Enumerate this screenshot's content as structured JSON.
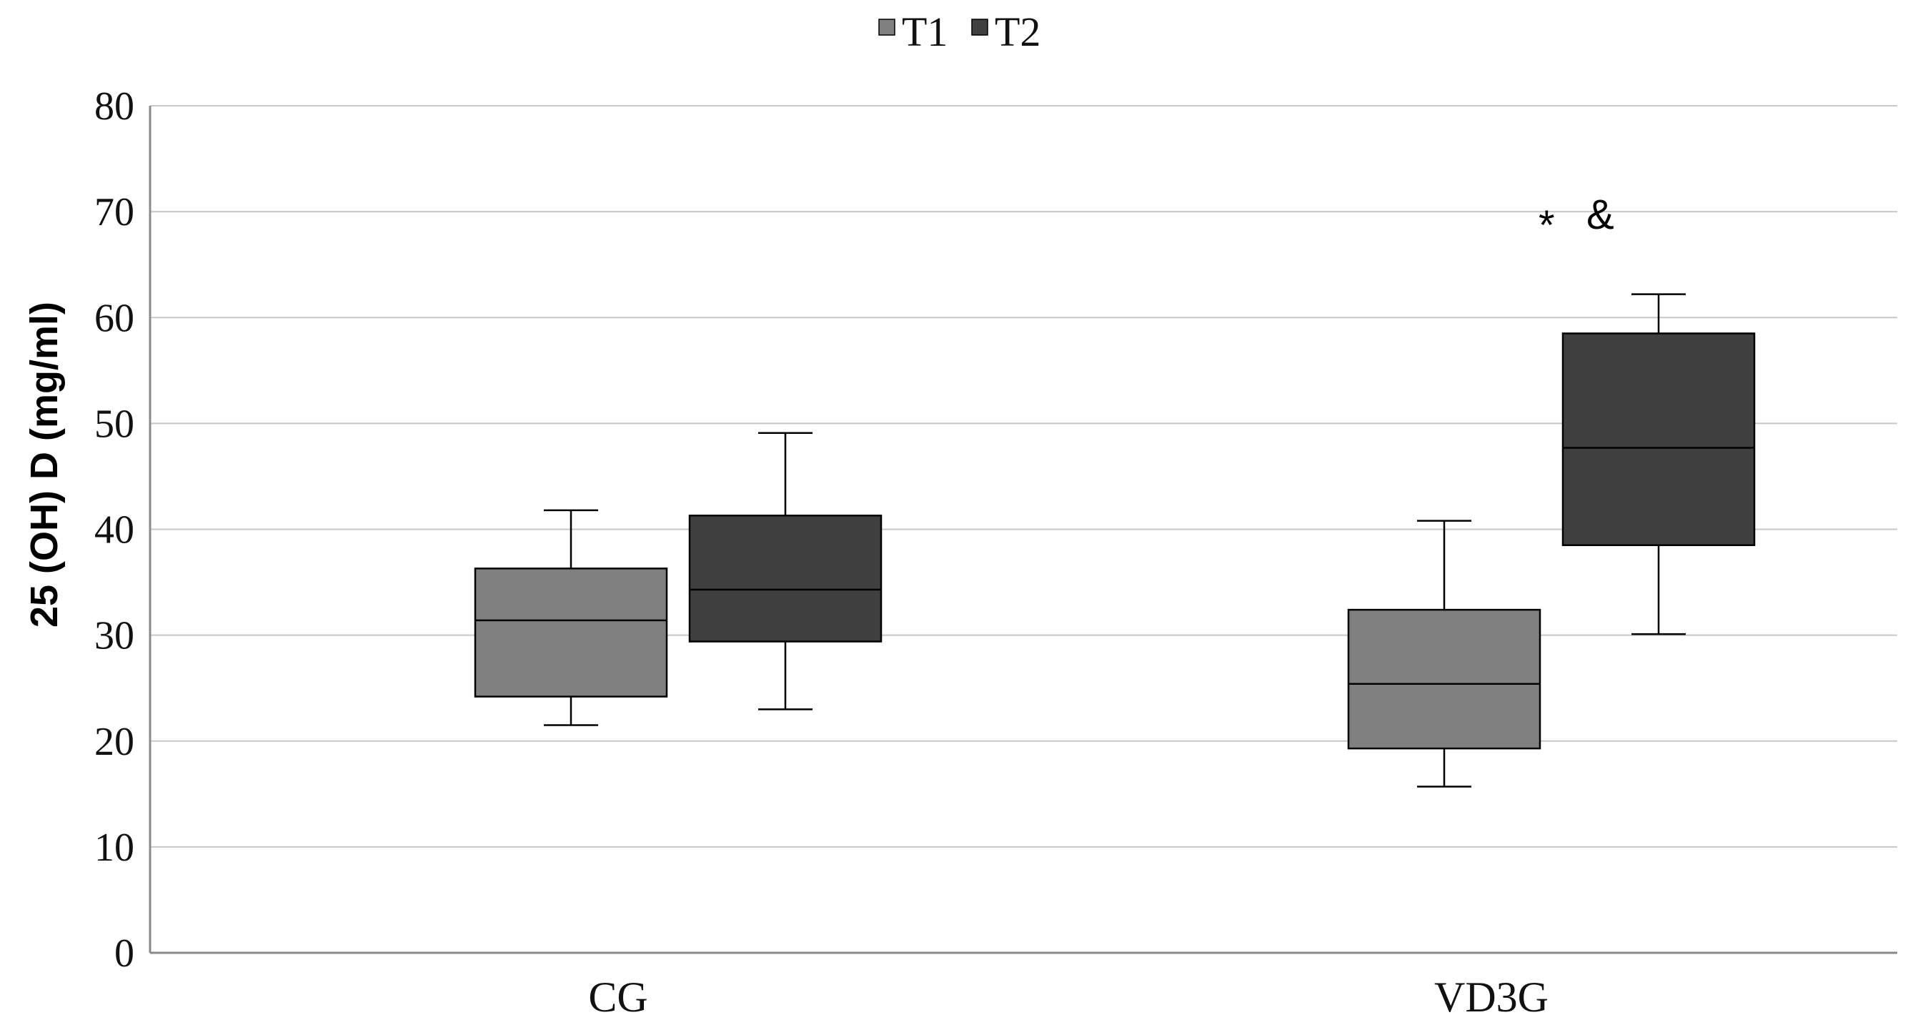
{
  "chart_data": {
    "type": "boxplot",
    "ylabel": "25 (OH) D (mg/ml)",
    "xlabel": "",
    "ylim": [
      0,
      80
    ],
    "yticks": [
      0,
      10,
      20,
      30,
      40,
      50,
      60,
      70,
      80
    ],
    "grid": true,
    "legend_position": "top-center",
    "categories": [
      "CG",
      "VD3G"
    ],
    "series": [
      {
        "name": "T1",
        "color": "#808080",
        "boxes": [
          {
            "category": "CG",
            "min": 21.5,
            "q1": 24.2,
            "median": 31.4,
            "q3": 36.3,
            "max": 41.8
          },
          {
            "category": "VD3G",
            "min": 15.7,
            "q1": 19.3,
            "median": 25.4,
            "q3": 32.4,
            "max": 40.8
          }
        ]
      },
      {
        "name": "T2",
        "color": "#404040",
        "boxes": [
          {
            "category": "CG",
            "min": 23.0,
            "q1": 29.4,
            "median": 34.3,
            "q3": 41.3,
            "max": 49.1
          },
          {
            "category": "VD3G",
            "min": 30.1,
            "q1": 38.5,
            "median": 47.7,
            "q3": 58.5,
            "max": 62.2
          }
        ]
      }
    ],
    "annotations": [
      {
        "text": "*",
        "category": "VD3G",
        "series": "T2",
        "y": 68.5
      },
      {
        "text": "&",
        "category": "VD3G",
        "series": "T2",
        "y": 69.2
      }
    ]
  }
}
